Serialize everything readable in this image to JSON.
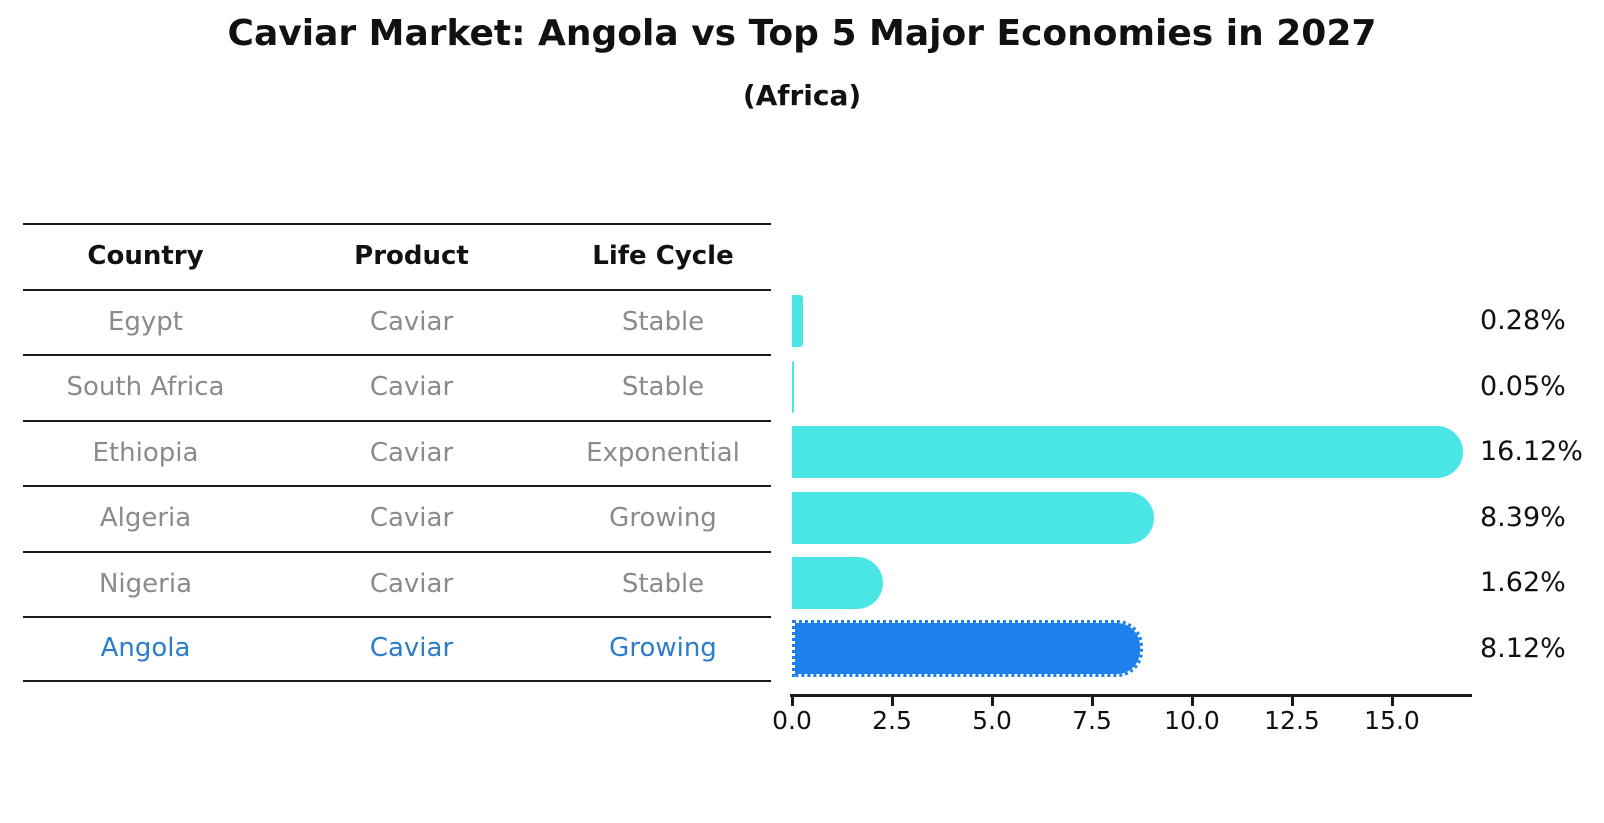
{
  "title": "Caviar Market: Angola vs Top 5 Major Economies in 2027",
  "subtitle": "(Africa)",
  "table": {
    "headers": [
      "Country",
      "Product",
      "Life Cycle"
    ],
    "rows": [
      {
        "country": "Egypt",
        "product": "Caviar",
        "life_cycle": "Stable",
        "highlighted": false
      },
      {
        "country": "South Africa",
        "product": "Caviar",
        "life_cycle": "Stable",
        "highlighted": false
      },
      {
        "country": "Ethiopia",
        "product": "Caviar",
        "life_cycle": "Exponential",
        "highlighted": false
      },
      {
        "country": "Algeria",
        "product": "Caviar",
        "life_cycle": "Growing",
        "highlighted": false
      },
      {
        "country": "Nigeria",
        "product": "Caviar",
        "life_cycle": "Stable",
        "highlighted": false
      },
      {
        "country": "Angola",
        "product": "Caviar",
        "life_cycle": "Growing",
        "highlighted": true
      }
    ]
  },
  "chart_data": {
    "type": "bar",
    "orientation": "horizontal",
    "title": "Caviar Market: Angola vs Top 5 Major Economies in 2027 (Africa)",
    "categories": [
      "Egypt",
      "South Africa",
      "Ethiopia",
      "Algeria",
      "Nigeria",
      "Angola"
    ],
    "values": [
      0.28,
      0.05,
      16.12,
      8.39,
      1.62,
      8.12
    ],
    "value_labels": [
      "0.28%",
      "0.05%",
      "16.12%",
      "8.39%",
      "1.62%",
      "8.12%"
    ],
    "x_tick_labels": [
      "0.0",
      "2.5",
      "5.0",
      "7.5",
      "10.0",
      "12.5",
      "15.0"
    ],
    "x_tick_values": [
      0.0,
      2.5,
      5.0,
      7.5,
      10.0,
      12.5,
      15.0
    ],
    "xlim": [
      0,
      17
    ],
    "grid": false,
    "legend": null,
    "highlight_index": 5,
    "colors": {
      "bar": "#4ae6e6",
      "highlight_bar": "#1e80ea",
      "highlight_text": "#2b7ccd",
      "row_text": "#8b8b8b",
      "header_text": "#111111",
      "axis": "#1a1a1a"
    }
  }
}
